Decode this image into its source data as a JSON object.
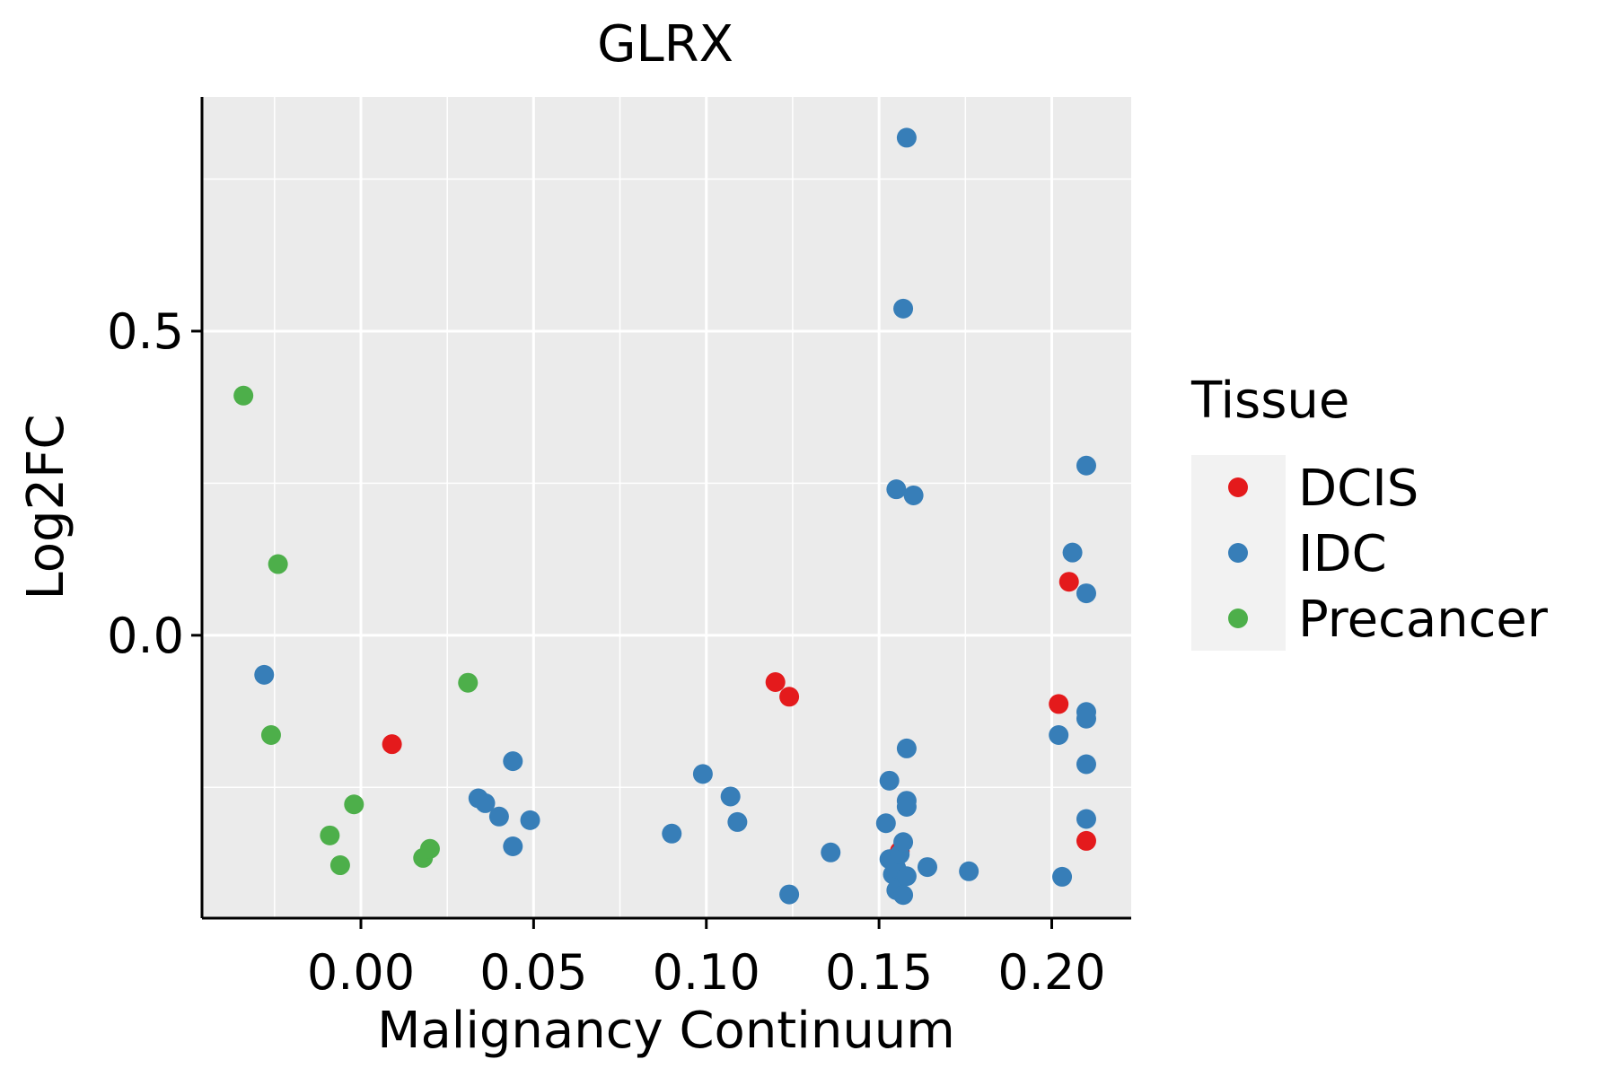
{
  "chart_data": {
    "type": "scatter",
    "title": "GLRX",
    "xlabel": "Malignancy Continuum",
    "ylabel": "Log2FC",
    "xlim": [
      -0.046,
      0.223
    ],
    "ylim": [
      -0.465,
      0.885
    ],
    "xticks": [
      0.0,
      0.05,
      0.1,
      0.15,
      0.2
    ],
    "xtick_labels": [
      "0.00",
      "0.05",
      "0.10",
      "0.15",
      "0.20"
    ],
    "yticks": [
      0.0,
      0.5
    ],
    "ytick_labels": [
      "0.0",
      "0.5"
    ],
    "grid": true,
    "legend": {
      "title": "Tissue",
      "position": "right",
      "entries": [
        {
          "label": "DCIS",
          "color": "#E41A1C"
        },
        {
          "label": "IDC",
          "color": "#377EB8"
        },
        {
          "label": "Precancer",
          "color": "#4DAF4A"
        }
      ]
    },
    "series": [
      {
        "name": "DCIS",
        "color": "#E41A1C",
        "points": [
          [
            0.009,
            -0.179
          ],
          [
            0.12,
            -0.077
          ],
          [
            0.124,
            -0.101
          ],
          [
            0.156,
            -0.355
          ],
          [
            0.202,
            -0.113
          ],
          [
            0.205,
            0.088
          ],
          [
            0.21,
            -0.338
          ]
        ]
      },
      {
        "name": "IDC",
        "color": "#377EB8",
        "points": [
          [
            -0.028,
            -0.065
          ],
          [
            0.034,
            -0.268
          ],
          [
            0.036,
            -0.276
          ],
          [
            0.04,
            -0.298
          ],
          [
            0.044,
            -0.207
          ],
          [
            0.044,
            -0.347
          ],
          [
            0.049,
            -0.304
          ],
          [
            0.09,
            -0.326
          ],
          [
            0.099,
            -0.228
          ],
          [
            0.107,
            -0.265
          ],
          [
            0.109,
            -0.307
          ],
          [
            0.124,
            -0.426
          ],
          [
            0.136,
            -0.357
          ],
          [
            0.152,
            -0.309
          ],
          [
            0.153,
            -0.239
          ],
          [
            0.153,
            -0.368
          ],
          [
            0.154,
            -0.393
          ],
          [
            0.155,
            -0.419
          ],
          [
            0.155,
            -0.383
          ],
          [
            0.155,
            0.24
          ],
          [
            0.156,
            -0.36
          ],
          [
            0.157,
            -0.34
          ],
          [
            0.157,
            -0.427
          ],
          [
            0.157,
            0.537
          ],
          [
            0.158,
            -0.186
          ],
          [
            0.158,
            -0.272
          ],
          [
            0.158,
            -0.282
          ],
          [
            0.158,
            -0.396
          ],
          [
            0.158,
            0.818
          ],
          [
            0.16,
            0.23
          ],
          [
            0.164,
            -0.381
          ],
          [
            0.176,
            -0.388
          ],
          [
            0.202,
            -0.164
          ],
          [
            0.203,
            -0.397
          ],
          [
            0.206,
            0.136
          ],
          [
            0.21,
            0.279
          ],
          [
            0.21,
            0.069
          ],
          [
            0.21,
            -0.126
          ],
          [
            0.21,
            -0.137
          ],
          [
            0.21,
            -0.212
          ],
          [
            0.21,
            -0.302
          ]
        ]
      },
      {
        "name": "Precancer",
        "color": "#4DAF4A",
        "points": [
          [
            -0.034,
            0.394
          ],
          [
            -0.026,
            -0.164
          ],
          [
            -0.024,
            0.117
          ],
          [
            -0.009,
            -0.329
          ],
          [
            -0.006,
            -0.378
          ],
          [
            -0.002,
            -0.278
          ],
          [
            0.018,
            -0.366
          ],
          [
            0.02,
            -0.351
          ],
          [
            0.031,
            -0.078
          ]
        ]
      }
    ]
  }
}
